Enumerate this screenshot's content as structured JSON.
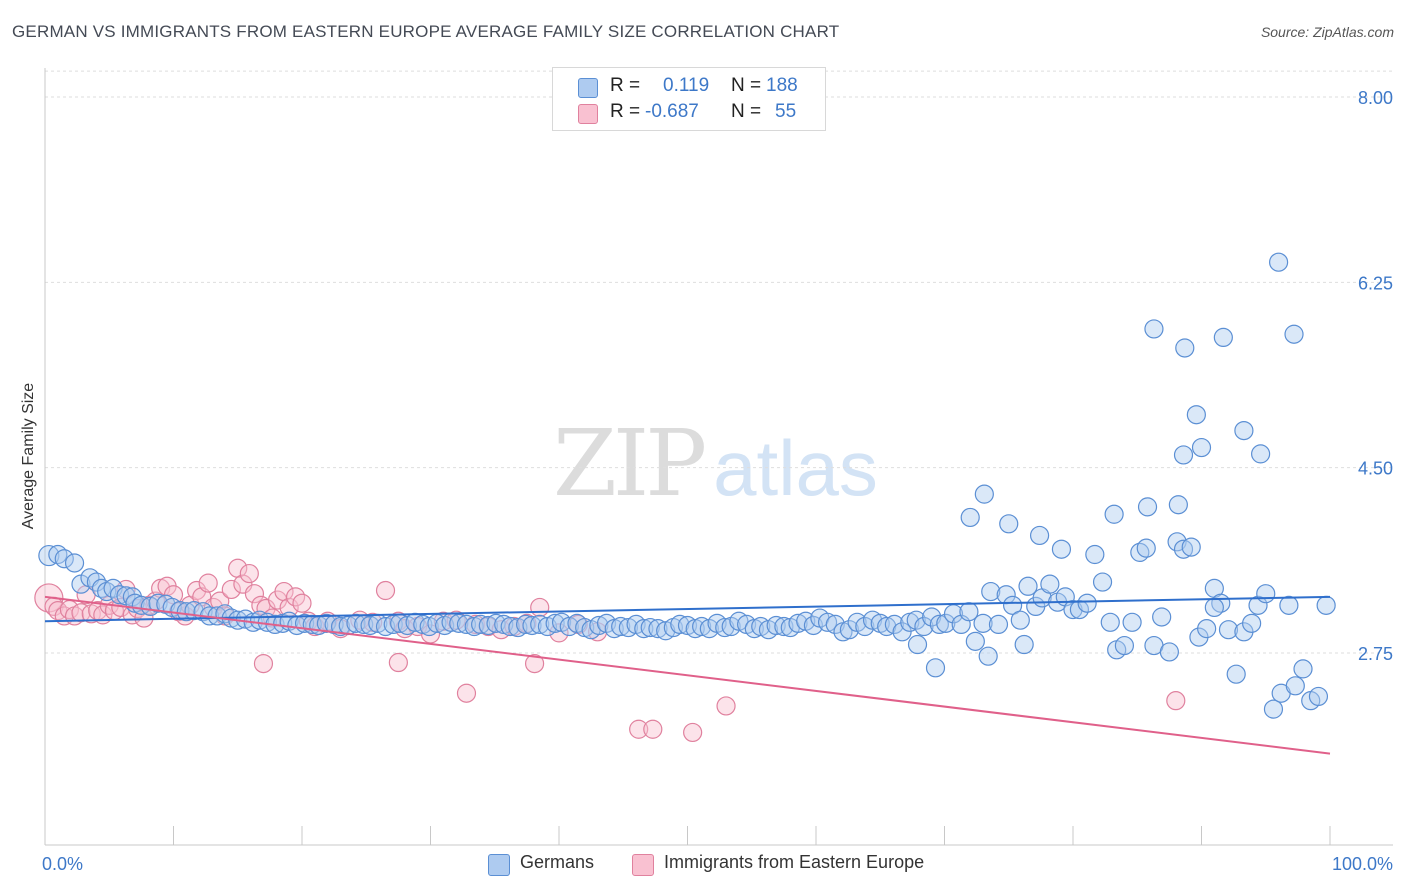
{
  "header": {
    "title": "GERMAN VS IMMIGRANTS FROM EASTERN EUROPE AVERAGE FAMILY SIZE CORRELATION CHART",
    "source": "Source: ZipAtlas.com"
  },
  "watermark": {
    "part1": "ZIP",
    "part2": "atlas"
  },
  "legend_top": [
    {
      "r_label": "R =",
      "r_value": "0.119",
      "n_label": "N =",
      "n_value": "188",
      "color": "#aecbf0",
      "border": "#5b8fd4"
    },
    {
      "r_label": "R =",
      "r_value": "-0.687",
      "n_label": "N =",
      "n_value": "55",
      "color": "#f9c1d1",
      "border": "#e0819e"
    }
  ],
  "legend_bottom": [
    {
      "label": "Germans",
      "color": "#aecbf0",
      "border": "#5b8fd4"
    },
    {
      "label": "Immigrants from Eastern Europe",
      "color": "#f9c1d1",
      "border": "#e0819e"
    }
  ],
  "chart_data": {
    "type": "scatter",
    "ylabel": "Average Family Size",
    "xlim": [
      0,
      100
    ],
    "ylim": [
      1.5,
      8.2
    ],
    "x_tick_labels": [
      "0.0%",
      "100.0%"
    ],
    "y_ticks": [
      2.75,
      4.5,
      6.25,
      8.0
    ],
    "y_tick_labels": [
      "2.75",
      "4.50",
      "6.25",
      "8.00"
    ],
    "grid": true,
    "series": [
      {
        "name": "Germans",
        "color": "#5b8fd4",
        "fill": "#aecbf0",
        "trend": {
          "x": [
            0,
            100
          ],
          "y": [
            3.05,
            3.28
          ]
        },
        "points": [
          [
            0.3,
            3.67
          ],
          [
            1.0,
            3.68
          ],
          [
            1.5,
            3.64
          ],
          [
            2.3,
            3.6
          ],
          [
            2.8,
            3.4
          ],
          [
            3.5,
            3.46
          ],
          [
            4.0,
            3.42
          ],
          [
            4.4,
            3.36
          ],
          [
            4.8,
            3.33
          ],
          [
            5.3,
            3.36
          ],
          [
            5.8,
            3.3
          ],
          [
            6.3,
            3.29
          ],
          [
            6.8,
            3.28
          ],
          [
            7.0,
            3.22
          ],
          [
            7.5,
            3.2
          ],
          [
            8.2,
            3.19
          ],
          [
            8.8,
            3.22
          ],
          [
            9.4,
            3.21
          ],
          [
            9.9,
            3.18
          ],
          [
            10.5,
            3.15
          ],
          [
            11.0,
            3.14
          ],
          [
            11.6,
            3.15
          ],
          [
            12.3,
            3.14
          ],
          [
            12.8,
            3.1
          ],
          [
            13.4,
            3.1
          ],
          [
            14.0,
            3.12
          ],
          [
            14.5,
            3.08
          ],
          [
            15.0,
            3.06
          ],
          [
            15.6,
            3.07
          ],
          [
            16.2,
            3.04
          ],
          [
            16.7,
            3.06
          ],
          [
            17.3,
            3.04
          ],
          [
            17.9,
            3.02
          ],
          [
            18.5,
            3.03
          ],
          [
            19.0,
            3.05
          ],
          [
            19.6,
            3.01
          ],
          [
            20.2,
            3.03
          ],
          [
            20.8,
            3.02
          ],
          [
            21.3,
            3.01
          ],
          [
            21.9,
            3.03
          ],
          [
            22.5,
            3.02
          ],
          [
            23.0,
            3.0
          ],
          [
            23.6,
            3.01
          ],
          [
            24.2,
            3.03
          ],
          [
            24.8,
            3.02
          ],
          [
            25.3,
            3.01
          ],
          [
            25.9,
            3.03
          ],
          [
            26.5,
            3.0
          ],
          [
            27.1,
            3.02
          ],
          [
            27.6,
            3.03
          ],
          [
            28.2,
            3.01
          ],
          [
            28.8,
            3.04
          ],
          [
            29.4,
            3.02
          ],
          [
            29.9,
            3.0
          ],
          [
            30.5,
            3.03
          ],
          [
            31.1,
            3.01
          ],
          [
            31.6,
            3.04
          ],
          [
            32.2,
            3.03
          ],
          [
            32.8,
            3.02
          ],
          [
            33.4,
            3.0
          ],
          [
            33.9,
            3.02
          ],
          [
            34.5,
            3.01
          ],
          [
            35.1,
            3.03
          ],
          [
            35.7,
            3.02
          ],
          [
            36.2,
            3.0
          ],
          [
            36.8,
            2.99
          ],
          [
            37.4,
            3.02
          ],
          [
            37.9,
            3.01
          ],
          [
            38.5,
            3.02
          ],
          [
            39.1,
            3.0
          ],
          [
            39.7,
            3.03
          ],
          [
            40.2,
            3.04
          ],
          [
            40.8,
            3.0
          ],
          [
            41.4,
            3.03
          ],
          [
            42.0,
            2.99
          ],
          [
            42.5,
            2.97
          ],
          [
            43.1,
            3.01
          ],
          [
            43.7,
            3.03
          ],
          [
            44.3,
            2.98
          ],
          [
            44.8,
            3.0
          ],
          [
            45.4,
            2.99
          ],
          [
            46.0,
            3.02
          ],
          [
            46.6,
            2.98
          ],
          [
            47.1,
            2.99
          ],
          [
            47.7,
            2.98
          ],
          [
            48.3,
            2.96
          ],
          [
            48.9,
            2.99
          ],
          [
            49.4,
            3.02
          ],
          [
            50.0,
            3.01
          ],
          [
            50.6,
            2.98
          ],
          [
            51.1,
            3.0
          ],
          [
            51.7,
            2.98
          ],
          [
            52.3,
            3.03
          ],
          [
            52.9,
            2.99
          ],
          [
            53.4,
            3.0
          ],
          [
            54.0,
            3.05
          ],
          [
            54.6,
            3.02
          ],
          [
            55.2,
            2.98
          ],
          [
            55.7,
            3.0
          ],
          [
            56.3,
            2.97
          ],
          [
            56.9,
            3.01
          ],
          [
            57.5,
            3.0
          ],
          [
            58.0,
            2.99
          ],
          [
            58.6,
            3.03
          ],
          [
            59.2,
            3.05
          ],
          [
            59.8,
            3.01
          ],
          [
            60.3,
            3.08
          ],
          [
            60.9,
            3.04
          ],
          [
            61.5,
            3.02
          ],
          [
            62.1,
            2.95
          ],
          [
            62.6,
            2.97
          ],
          [
            63.2,
            3.04
          ],
          [
            63.8,
            3.0
          ],
          [
            64.4,
            3.06
          ],
          [
            65.0,
            3.03
          ],
          [
            65.5,
            3.0
          ],
          [
            66.1,
            3.02
          ],
          [
            66.7,
            2.95
          ],
          [
            67.3,
            3.04
          ],
          [
            67.8,
            3.06
          ],
          [
            68.4,
            3.0
          ],
          [
            69.0,
            3.09
          ],
          [
            69.6,
            3.02
          ],
          [
            70.1,
            3.03
          ],
          [
            70.7,
            3.12
          ],
          [
            71.3,
            3.02
          ],
          [
            71.9,
            3.14
          ],
          [
            72.4,
            2.86
          ],
          [
            73.0,
            3.03
          ],
          [
            73.6,
            3.33
          ],
          [
            74.2,
            3.02
          ],
          [
            74.8,
            3.3
          ],
          [
            75.3,
            3.2
          ],
          [
            75.9,
            3.06
          ],
          [
            76.5,
            3.38
          ],
          [
            77.1,
            3.19
          ],
          [
            77.6,
            3.27
          ],
          [
            78.2,
            3.4
          ],
          [
            78.8,
            3.23
          ],
          [
            79.4,
            3.28
          ],
          [
            80.0,
            3.16
          ],
          [
            80.5,
            3.16
          ],
          [
            81.1,
            3.22
          ],
          [
            81.7,
            3.68
          ],
          [
            82.3,
            3.42
          ],
          [
            82.9,
            3.04
          ],
          [
            83.4,
            2.78
          ],
          [
            84.0,
            2.82
          ],
          [
            84.6,
            3.04
          ],
          [
            85.2,
            3.7
          ],
          [
            85.7,
            3.74
          ],
          [
            86.3,
            2.82
          ],
          [
            86.9,
            3.09
          ],
          [
            87.5,
            2.76
          ],
          [
            88.1,
            3.8
          ],
          [
            88.6,
            3.73
          ],
          [
            89.2,
            3.75
          ],
          [
            89.8,
            2.9
          ],
          [
            90.4,
            2.98
          ],
          [
            91.0,
            3.36
          ],
          [
            91.5,
            3.22
          ],
          [
            92.1,
            2.97
          ],
          [
            92.7,
            2.55
          ],
          [
            93.3,
            2.95
          ],
          [
            93.9,
            3.03
          ],
          [
            94.4,
            3.2
          ],
          [
            95.0,
            3.31
          ],
          [
            95.6,
            2.22
          ],
          [
            96.2,
            2.37
          ],
          [
            96.8,
            3.2
          ],
          [
            97.3,
            2.44
          ],
          [
            97.9,
            2.6
          ],
          [
            98.5,
            2.3
          ],
          [
            99.1,
            2.34
          ],
          [
            99.7,
            3.2
          ],
          [
            67.9,
            2.83
          ],
          [
            73.4,
            2.72
          ],
          [
            76.2,
            2.83
          ],
          [
            69.3,
            2.61
          ],
          [
            72.0,
            4.03
          ],
          [
            73.1,
            4.25
          ],
          [
            75.0,
            3.97
          ],
          [
            77.4,
            3.86
          ],
          [
            79.1,
            3.73
          ],
          [
            83.2,
            4.06
          ],
          [
            85.8,
            4.13
          ],
          [
            86.3,
            5.81
          ],
          [
            88.6,
            4.62
          ],
          [
            88.2,
            4.15
          ],
          [
            88.7,
            5.63
          ],
          [
            89.6,
            5.0
          ],
          [
            90.0,
            4.69
          ],
          [
            91.0,
            3.18
          ],
          [
            91.7,
            5.73
          ],
          [
            93.3,
            4.85
          ],
          [
            94.6,
            4.63
          ],
          [
            96.0,
            6.44
          ],
          [
            97.2,
            5.76
          ]
        ]
      },
      {
        "name": "Immigrants from Eastern Europe",
        "color": "#e0819e",
        "fill": "#f9c1d1",
        "trend": {
          "x": [
            0,
            100
          ],
          "y": [
            3.28,
            1.8
          ]
        },
        "points": [
          [
            0.3,
            3.27
          ],
          [
            0.7,
            3.19
          ],
          [
            1.0,
            3.15
          ],
          [
            1.5,
            3.1
          ],
          [
            1.9,
            3.16
          ],
          [
            2.3,
            3.1
          ],
          [
            2.8,
            3.13
          ],
          [
            3.2,
            3.3
          ],
          [
            3.6,
            3.12
          ],
          [
            4.1,
            3.15
          ],
          [
            4.5,
            3.11
          ],
          [
            5.0,
            3.2
          ],
          [
            5.4,
            3.15
          ],
          [
            5.9,
            3.18
          ],
          [
            6.3,
            3.35
          ],
          [
            6.8,
            3.11
          ],
          [
            7.2,
            3.17
          ],
          [
            7.7,
            3.08
          ],
          [
            8.1,
            3.2
          ],
          [
            8.6,
            3.24
          ],
          [
            9.0,
            3.36
          ],
          [
            9.5,
            3.38
          ],
          [
            10.0,
            3.3
          ],
          [
            10.4,
            3.14
          ],
          [
            10.9,
            3.1
          ],
          [
            11.3,
            3.2
          ],
          [
            11.8,
            3.34
          ],
          [
            12.2,
            3.28
          ],
          [
            12.7,
            3.41
          ],
          [
            13.1,
            3.18
          ],
          [
            13.6,
            3.24
          ],
          [
            14.0,
            3.1
          ],
          [
            14.5,
            3.35
          ],
          [
            15.0,
            3.55
          ],
          [
            15.4,
            3.4
          ],
          [
            15.9,
            3.5
          ],
          [
            16.3,
            3.31
          ],
          [
            16.8,
            3.2
          ],
          [
            17.2,
            3.17
          ],
          [
            17.7,
            3.08
          ],
          [
            18.1,
            3.25
          ],
          [
            18.6,
            3.33
          ],
          [
            19.0,
            3.18
          ],
          [
            19.5,
            3.28
          ],
          [
            20.0,
            3.22
          ],
          [
            20.5,
            3.05
          ],
          [
            21.0,
            3.0
          ],
          [
            22.0,
            3.05
          ],
          [
            23.0,
            2.98
          ],
          [
            24.5,
            3.06
          ],
          [
            25.5,
            3.04
          ],
          [
            26.5,
            3.34
          ],
          [
            27.5,
            3.05
          ],
          [
            28.0,
            2.98
          ],
          [
            29.0,
            3.0
          ],
          [
            30.0,
            2.93
          ],
          [
            31.0,
            3.05
          ],
          [
            32.0,
            3.06
          ],
          [
            33.5,
            3.02
          ],
          [
            34.5,
            3.0
          ],
          [
            35.5,
            2.97
          ],
          [
            36.5,
            3.0
          ],
          [
            37.5,
            3.03
          ],
          [
            38.5,
            3.18
          ],
          [
            40.0,
            2.94
          ],
          [
            41.5,
            3.02
          ],
          [
            43.0,
            2.95
          ],
          [
            17.0,
            2.65
          ],
          [
            27.5,
            2.66
          ],
          [
            32.8,
            2.37
          ],
          [
            38.1,
            2.65
          ],
          [
            46.2,
            2.03
          ],
          [
            47.3,
            2.03
          ],
          [
            50.4,
            2.0
          ],
          [
            53.0,
            2.25
          ],
          [
            88.0,
            2.3
          ]
        ]
      }
    ]
  }
}
